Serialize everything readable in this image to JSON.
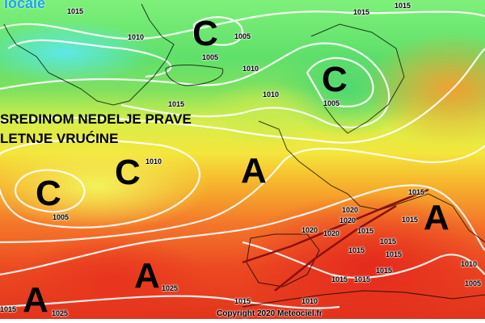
{
  "logo_text": "locale",
  "headline": {
    "line1": "SREDINOM NEDELJE PRAVE",
    "line2": "LETNJE VRUĆINE"
  },
  "copyright": "Copyright 2020 Meteociel.fr",
  "low_symbol": "C",
  "high_symbol": "A",
  "pressure_labels": [
    "1015",
    "1010",
    "1005",
    "1005",
    "1015",
    "1010",
    "1005",
    "1015",
    "1010",
    "1005",
    "1020",
    "1020",
    "1020",
    "1020",
    "1015",
    "1015",
    "1015",
    "1015",
    "1015",
    "1015",
    "1015",
    "1015",
    "1015",
    "1010",
    "1005",
    "1025",
    "1025",
    "1015",
    "1010",
    "1015",
    "1010",
    "1015"
  ],
  "colors": {
    "low_pressure": "#4fd870",
    "mid_pressure": "#f4e63c",
    "high_pressure": "#e2341c",
    "isobar": "#ffffff",
    "frontal_line": "#8b1010"
  }
}
